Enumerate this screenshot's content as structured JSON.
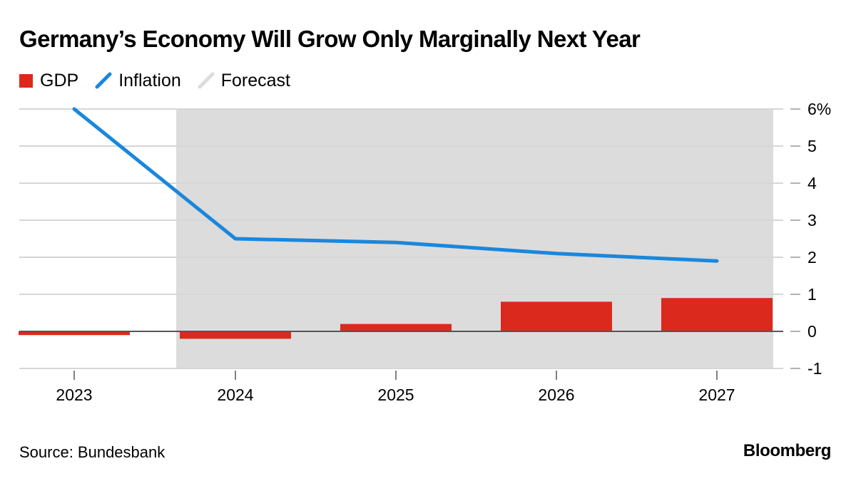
{
  "title": "Germany’s Economy Will Grow Only Marginally Next Year",
  "legend": {
    "gdp": "GDP",
    "inflation": "Inflation",
    "forecast": "Forecast"
  },
  "colors": {
    "gdp": "#dc291e",
    "inflation": "#1a87dc",
    "forecast": "#dcdcdc",
    "grid": "#d6d6d6",
    "zero_line": "#555555",
    "axis_ticks": "#999999"
  },
  "footer": {
    "source": "Source: Bundesbank",
    "brand": "Bloomberg"
  },
  "chart_data": {
    "type": "bar",
    "categories": [
      "2023",
      "2024",
      "2025",
      "2026",
      "2027"
    ],
    "series": [
      {
        "name": "GDP",
        "type": "bar",
        "values": [
          -0.1,
          -0.2,
          0.2,
          0.8,
          0.9
        ]
      },
      {
        "name": "Inflation",
        "type": "line",
        "values": [
          6.0,
          2.5,
          2.4,
          2.1,
          1.9
        ]
      }
    ],
    "forecast_span": [
      "2024",
      "2027"
    ],
    "ylim": [
      -1,
      6
    ],
    "y_ticks": [
      -1,
      0,
      1,
      2,
      3,
      4,
      5,
      6
    ],
    "y_tick_labels": [
      "-1",
      "0",
      "1",
      "2",
      "3",
      "4",
      "5",
      "6%"
    ],
    "y_axis_side": "right",
    "grid": true,
    "legend_position": "top-left",
    "title": "Germany’s Economy Will Grow Only Marginally Next Year",
    "xlabel": "",
    "ylabel": ""
  }
}
